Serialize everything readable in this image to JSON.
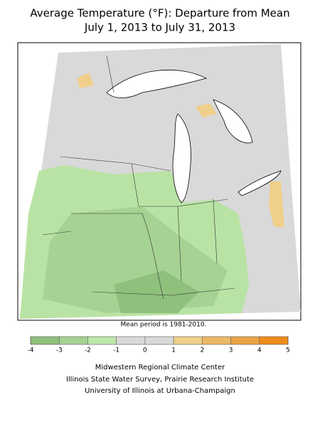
{
  "title": [
    "Average Temperature (°F): Departure from Mean",
    "July 1, 2013 to July 31, 2013"
  ],
  "note": "Mean period is 1981-2010.",
  "legend": {
    "ticks": [
      -4,
      -3,
      -2,
      -1,
      0,
      1,
      2,
      3,
      4,
      5
    ],
    "colors": [
      "#8fc07c",
      "#a6d293",
      "#bde6aa",
      "#d9d9d9",
      "#d9d9d9",
      "#efcf8a",
      "#ebb865",
      "#e9a347",
      "#ee8c1a"
    ]
  },
  "credits": [
    "Midwestern Regional Climate Center",
    "Illinois State Water Survey, Prairie Research Institute",
    "University of Illinois at Urbana-Champaign"
  ]
}
